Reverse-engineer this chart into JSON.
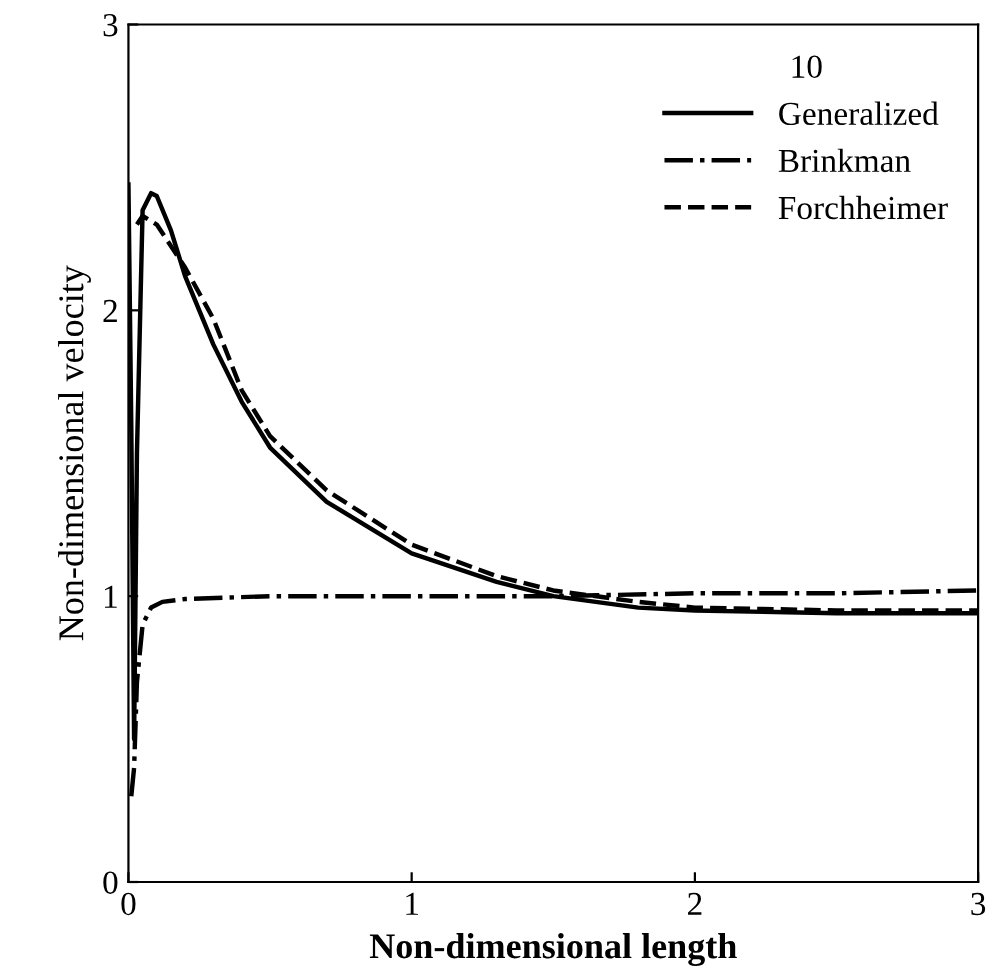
{
  "chart_data": {
    "type": "line",
    "xlabel": "Non-dimensional length",
    "ylabel": "Non-dimensional velocity",
    "legend_title": "10",
    "legend": "top right",
    "xlim": [
      0,
      3
    ],
    "ylim": [
      0,
      3
    ],
    "xticks": [
      0,
      1,
      2,
      3
    ],
    "yticks": [
      0,
      1,
      2,
      3
    ],
    "grid": false,
    "series": [
      {
        "name": "Generalized",
        "color": "#000000",
        "line_style": "solid",
        "x": [
          0,
          0.01,
          0.02,
          0.03,
          0.05,
          0.08,
          0.1,
          0.15,
          0.2,
          0.3,
          0.4,
          0.5,
          0.7,
          1.0,
          1.3,
          1.5,
          1.8,
          2.0,
          2.5,
          3.0
        ],
        "values": [
          2.44,
          1.6,
          0.5,
          1.5,
          2.35,
          2.41,
          2.4,
          2.28,
          2.12,
          1.88,
          1.68,
          1.52,
          1.33,
          1.15,
          1.05,
          1.0,
          0.96,
          0.95,
          0.94,
          0.94
        ]
      },
      {
        "name": "Brinkman",
        "color": "#000000",
        "line_style": "dashdot",
        "x": [
          0.01,
          0.02,
          0.03,
          0.05,
          0.08,
          0.12,
          0.2,
          0.5,
          1.0,
          1.5,
          2.0,
          2.5,
          3.0
        ],
        "values": [
          0.3,
          0.4,
          0.7,
          0.9,
          0.96,
          0.98,
          0.99,
          1.0,
          1.0,
          1.0,
          1.01,
          1.01,
          1.02
        ]
      },
      {
        "name": "Forchheimer",
        "color": "#000000",
        "line_style": "dashed",
        "x": [
          0.03,
          0.05,
          0.1,
          0.2,
          0.3,
          0.4,
          0.5,
          0.7,
          1.0,
          1.3,
          1.5,
          1.8,
          2.0,
          2.5,
          3.0
        ],
        "values": [
          2.3,
          2.33,
          2.3,
          2.15,
          1.97,
          1.72,
          1.56,
          1.37,
          1.18,
          1.07,
          1.02,
          0.98,
          0.96,
          0.95,
          0.95
        ]
      }
    ]
  }
}
